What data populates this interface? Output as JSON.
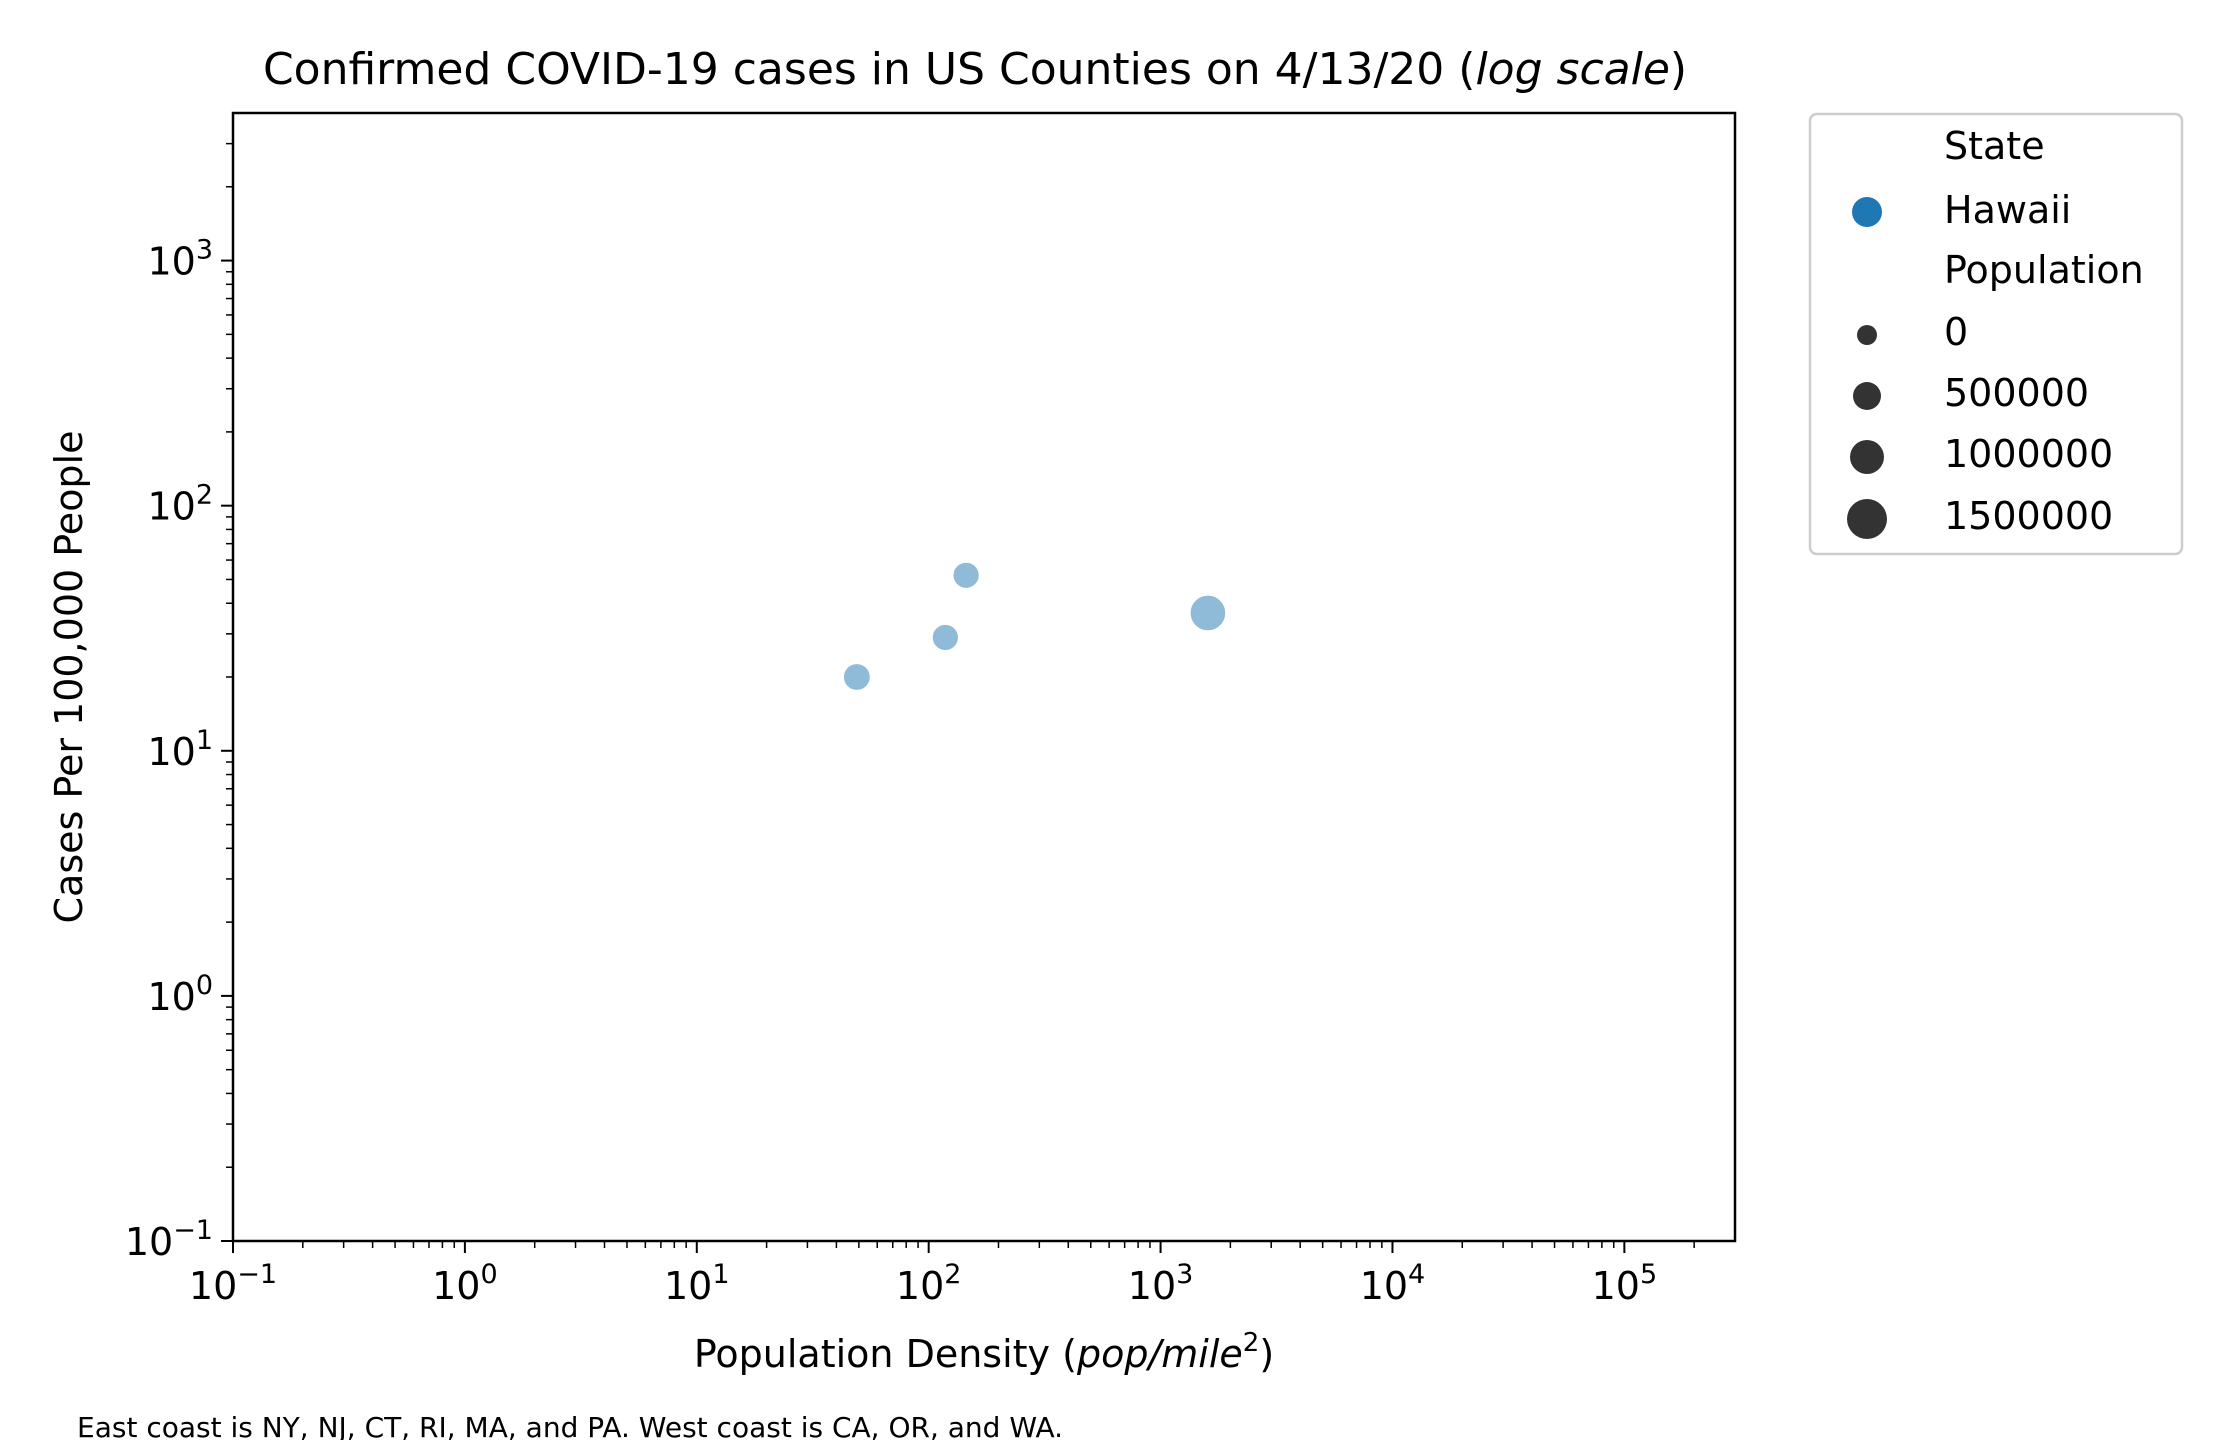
{
  "chart_data": {
    "type": "scatter",
    "title": {
      "main": "Confirmed COVID-19 cases in US Counties on 4/13/20 (",
      "italic": "log scale",
      "end": ")"
    },
    "xlabel": {
      "main": "Population Density (",
      "italic": "pop/mile",
      "sup": "2",
      "end": ")"
    },
    "ylabel": "Cases Per 100,000 People",
    "xscale": "log",
    "yscale": "log",
    "xlim": [
      0.1,
      300000
    ],
    "ylim": [
      0.1,
      4000
    ],
    "xticks": [
      {
        "value": 0.1,
        "base": "10",
        "exp": "−1"
      },
      {
        "value": 1,
        "base": "10",
        "exp": "0"
      },
      {
        "value": 10,
        "base": "10",
        "exp": "1"
      },
      {
        "value": 100,
        "base": "10",
        "exp": "2"
      },
      {
        "value": 1000,
        "base": "10",
        "exp": "3"
      },
      {
        "value": 10000,
        "base": "10",
        "exp": "4"
      },
      {
        "value": 100000,
        "base": "10",
        "exp": "5"
      }
    ],
    "yticks": [
      {
        "value": 0.1,
        "base": "10",
        "exp": "−1"
      },
      {
        "value": 1,
        "base": "10",
        "exp": "0"
      },
      {
        "value": 10,
        "base": "10",
        "exp": "1"
      },
      {
        "value": 100,
        "base": "10",
        "exp": "2"
      },
      {
        "value": 1000,
        "base": "10",
        "exp": "3"
      }
    ],
    "grid": false,
    "series": [
      {
        "name": "Hawaii",
        "color": "#1f77b4",
        "marker_opacity": 0.5,
        "points": [
          {
            "x": 49,
            "y": 20,
            "population": 200000
          },
          {
            "x": 118,
            "y": 29,
            "population": 167000
          },
          {
            "x": 145,
            "y": 52,
            "population": 167000
          },
          {
            "x": 1600,
            "y": 36.5,
            "population": 974000
          }
        ]
      }
    ],
    "legend": {
      "placement": "outside-top-right",
      "hue_title": "State",
      "hue_entries": [
        {
          "label": "Hawaii",
          "color": "#1f77b4"
        }
      ],
      "size_title": "Population",
      "size_entries": [
        {
          "label": "0",
          "value": 0
        },
        {
          "label": "500000",
          "value": 500000
        },
        {
          "label": "1000000",
          "value": 1000000
        },
        {
          "label": "1500000",
          "value": 1500000
        }
      ],
      "size_marker_color": "#333333"
    },
    "footnote": "East coast is NY, NJ, CT, RI, MA, and PA. West coast is CA, OR, and WA."
  }
}
